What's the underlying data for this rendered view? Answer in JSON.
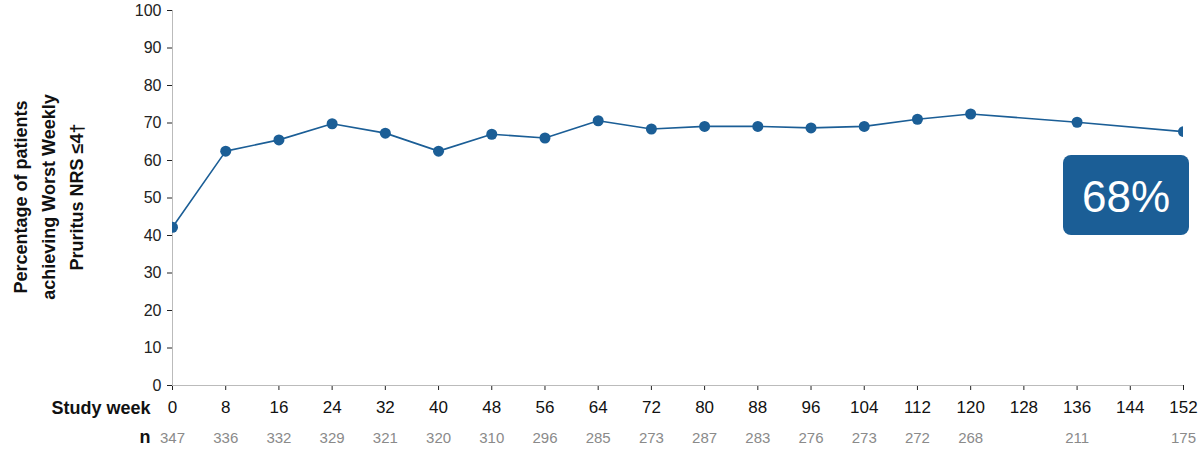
{
  "chart_data": {
    "type": "line",
    "y_label": [
      "Percentage of patients",
      "achieving Worst Weekly",
      "Pruritus NRS ≤4†"
    ],
    "x_label": "Study week",
    "x": [
      0,
      8,
      16,
      24,
      32,
      40,
      48,
      56,
      64,
      72,
      80,
      88,
      96,
      104,
      112,
      120,
      136,
      152
    ],
    "values": [
      42.2,
      62.5,
      65.5,
      69.8,
      67.3,
      62.5,
      67.0,
      66.0,
      70.6,
      68.4,
      69.1,
      69.1,
      68.7,
      69.1,
      71.0,
      72.4,
      70.2,
      67.7
    ],
    "n_label": "n",
    "n": [
      347,
      336,
      332,
      329,
      321,
      320,
      310,
      296,
      285,
      273,
      287,
      283,
      276,
      273,
      272,
      268,
      211,
      175
    ],
    "annotation": "68%",
    "color": "#1b5e96",
    "marker": "circle",
    "line_style": "solid",
    "grid": false,
    "xlim": [
      0,
      152
    ],
    "xticks": [
      0,
      8,
      16,
      24,
      32,
      40,
      48,
      56,
      64,
      72,
      80,
      88,
      96,
      104,
      112,
      120,
      128,
      136,
      144,
      152
    ],
    "ylim": [
      0,
      100
    ],
    "yticks": [
      0,
      10,
      20,
      30,
      40,
      50,
      60,
      70,
      80,
      90,
      100
    ]
  }
}
